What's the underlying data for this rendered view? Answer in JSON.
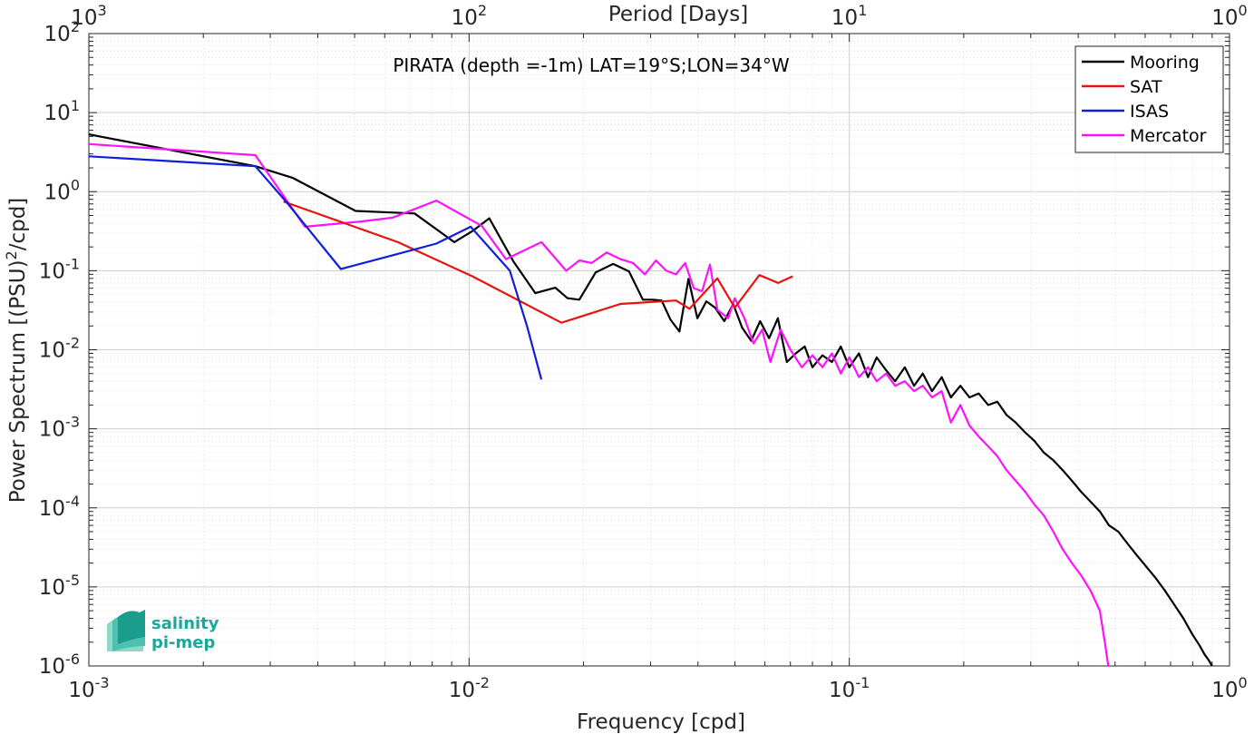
{
  "chart_data": {
    "type": "line",
    "title": "PIRATA (depth =-1m) LAT=19°S;LON=34°W",
    "xlabel": "Frequency [cpd]",
    "ylabel": "Power Spectrum [(PSU)2/cpd]",
    "ylabel_main": "Power Spectrum [(PSU)",
    "ylabel_sup": "2",
    "ylabel_end": "/cpd]",
    "top_xlabel": "Period [Days]",
    "x_scale": "log",
    "y_scale": "log",
    "xlim": [
      0.001,
      1
    ],
    "ylim": [
      1e-06,
      100
    ],
    "grid": true,
    "legend_position": "top-right",
    "x_ticks": [
      {
        "value": 0.001,
        "base": "10",
        "exp": "-3"
      },
      {
        "value": 0.01,
        "base": "10",
        "exp": "-2"
      },
      {
        "value": 0.1,
        "base": "10",
        "exp": "-1"
      },
      {
        "value": 1,
        "base": "10",
        "exp": "0"
      }
    ],
    "top_ticks": [
      {
        "value": 0.001,
        "base": "10",
        "exp": "3"
      },
      {
        "value": 0.01,
        "base": "10",
        "exp": "2"
      },
      {
        "value": 0.1,
        "base": "10",
        "exp": "1"
      },
      {
        "value": 1,
        "base": "10",
        "exp": "0"
      }
    ],
    "y_ticks": [
      {
        "value": 100,
        "base": "10",
        "exp": "2"
      },
      {
        "value": 10,
        "base": "10",
        "exp": "1"
      },
      {
        "value": 1,
        "base": "10",
        "exp": "0"
      },
      {
        "value": 0.1,
        "base": "10",
        "exp": "-1"
      },
      {
        "value": 0.01,
        "base": "10",
        "exp": "-2"
      },
      {
        "value": 0.001,
        "base": "10",
        "exp": "-3"
      },
      {
        "value": 0.0001,
        "base": "10",
        "exp": "-4"
      },
      {
        "value": 1e-05,
        "base": "10",
        "exp": "-5"
      },
      {
        "value": 1e-06,
        "base": "10",
        "exp": "-6"
      }
    ],
    "series": [
      {
        "name": "Mooring",
        "color": "#000000",
        "x": [
          0.001,
          0.00274,
          0.00343,
          0.00503,
          0.00719,
          0.00914,
          0.01023,
          0.0113,
          0.01309,
          0.01494,
          0.01686,
          0.01813,
          0.01949,
          0.02152,
          0.02392,
          0.02634,
          0.02865,
          0.0304,
          0.03209,
          0.03387,
          0.03574,
          0.03775,
          0.03985,
          0.04207,
          0.04441,
          0.0469,
          0.0495,
          0.05227,
          0.05522,
          0.05828,
          0.06153,
          0.0649,
          0.0685,
          0.07234,
          0.07636,
          0.08,
          0.085,
          0.09,
          0.095,
          0.1,
          0.106,
          0.112,
          0.118,
          0.125,
          0.132,
          0.14,
          0.148,
          0.156,
          0.165,
          0.175,
          0.185,
          0.196,
          0.207,
          0.219,
          0.232,
          0.245,
          0.259,
          0.274,
          0.29,
          0.307,
          0.325,
          0.344,
          0.364,
          0.385,
          0.407,
          0.431,
          0.456,
          0.482,
          0.51,
          0.54,
          0.571,
          0.604,
          0.639,
          0.676,
          0.715,
          0.756,
          0.799,
          0.835,
          0.86,
          0.88,
          0.9
        ],
        "y": [
          5.3,
          2.1,
          1.5,
          0.57,
          0.53,
          0.23,
          0.32,
          0.46,
          0.13,
          0.052,
          0.061,
          0.045,
          0.043,
          0.095,
          0.122,
          0.098,
          0.043,
          0.043,
          0.042,
          0.024,
          0.017,
          0.079,
          0.025,
          0.041,
          0.034,
          0.023,
          0.038,
          0.019,
          0.013,
          0.023,
          0.014,
          0.025,
          0.007,
          0.009,
          0.011,
          0.006,
          0.0085,
          0.007,
          0.011,
          0.006,
          0.009,
          0.0045,
          0.008,
          0.0055,
          0.004,
          0.006,
          0.0035,
          0.005,
          0.003,
          0.0045,
          0.0025,
          0.0035,
          0.0025,
          0.0028,
          0.002,
          0.0022,
          0.0015,
          0.0012,
          0.0009,
          0.0007,
          0.0005,
          0.0004,
          0.0003,
          0.00022,
          0.00016,
          0.00012,
          9e-05,
          6e-05,
          5e-05,
          3.5e-05,
          2.5e-05,
          1.8e-05,
          1.3e-05,
          9e-06,
          6e-06,
          4e-06,
          2.5e-06,
          1.8e-06,
          1.4e-06,
          1.2e-06,
          1e-06
        ]
      },
      {
        "name": "SAT",
        "color": "#e8130e",
        "x": [
          0.00325,
          0.0065,
          0.0102,
          0.0175,
          0.025,
          0.035,
          0.038,
          0.045,
          0.05,
          0.058,
          0.065,
          0.071
        ],
        "y": [
          0.75,
          0.23,
          0.085,
          0.022,
          0.038,
          0.042,
          0.033,
          0.08,
          0.034,
          0.088,
          0.07,
          0.085
        ]
      },
      {
        "name": "ISAS",
        "color": "#0f1eda",
        "x": [
          0.001,
          0.00274,
          0.0033,
          0.0046,
          0.0064,
          0.0082,
          0.0101,
          0.0128,
          0.0142,
          0.0155
        ],
        "y": [
          2.8,
          2.1,
          0.75,
          0.105,
          0.16,
          0.22,
          0.36,
          0.1,
          0.02,
          0.0042
        ]
      },
      {
        "name": "Mercator",
        "color": "#ff10ff",
        "x": [
          0.001,
          0.00274,
          0.0037,
          0.0052,
          0.0063,
          0.0082,
          0.0095,
          0.0108,
          0.0125,
          0.0155,
          0.018,
          0.0195,
          0.021,
          0.023,
          0.025,
          0.027,
          0.029,
          0.031,
          0.033,
          0.035,
          0.037,
          0.039,
          0.041,
          0.043,
          0.045,
          0.048,
          0.05,
          0.053,
          0.056,
          0.059,
          0.062,
          0.066,
          0.07,
          0.075,
          0.08,
          0.085,
          0.09,
          0.095,
          0.1,
          0.106,
          0.112,
          0.118,
          0.125,
          0.132,
          0.14,
          0.148,
          0.156,
          0.165,
          0.175,
          0.185,
          0.196,
          0.207,
          0.219,
          0.232,
          0.245,
          0.259,
          0.274,
          0.29,
          0.307,
          0.325,
          0.344,
          0.364,
          0.385,
          0.407,
          0.431,
          0.456,
          0.47,
          0.48
        ],
        "y": [
          4.0,
          2.9,
          0.36,
          0.42,
          0.47,
          0.77,
          0.52,
          0.37,
          0.14,
          0.23,
          0.1,
          0.135,
          0.125,
          0.17,
          0.14,
          0.125,
          0.09,
          0.135,
          0.1,
          0.09,
          0.125,
          0.06,
          0.055,
          0.12,
          0.032,
          0.025,
          0.045,
          0.025,
          0.012,
          0.018,
          0.007,
          0.018,
          0.01,
          0.006,
          0.0085,
          0.006,
          0.009,
          0.005,
          0.008,
          0.0045,
          0.006,
          0.004,
          0.005,
          0.0035,
          0.004,
          0.003,
          0.0035,
          0.0025,
          0.003,
          0.0012,
          0.002,
          0.0011,
          0.0008,
          0.0006,
          0.00045,
          0.0003,
          0.00022,
          0.00016,
          0.00011,
          8e-05,
          5e-05,
          3e-05,
          2e-05,
          1.4e-05,
          9e-06,
          5e-06,
          2e-06,
          1e-06
        ]
      }
    ]
  },
  "logo": {
    "line1": "salinity",
    "line2": "pi-mep",
    "color": "#1aa89a"
  }
}
